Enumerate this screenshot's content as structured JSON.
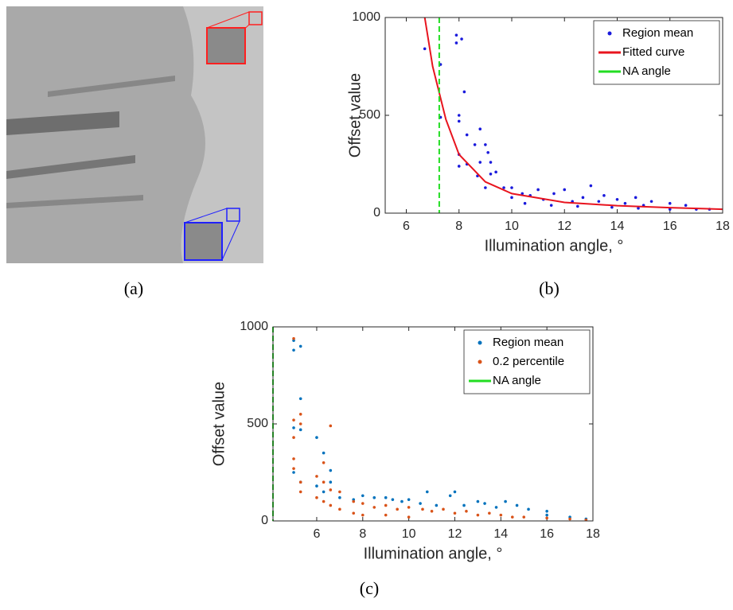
{
  "panel_a": {
    "caption": "(a)"
  },
  "chart_data": [
    {
      "type": "scatter",
      "caption": "(b)",
      "xlabel": "Illumination angle, °",
      "ylabel": "Offset value",
      "xlim": [
        5.2,
        18
      ],
      "ylim": [
        0,
        1000
      ],
      "xticks": [
        6,
        8,
        10,
        12,
        14,
        16,
        18
      ],
      "yticks": [
        0,
        500,
        1000
      ],
      "legend": "upper right",
      "series": [
        {
          "name": "Region mean",
          "color": "#1a1adc",
          "kind": "scatter",
          "x": [
            6.7,
            7.3,
            7.3,
            7.9,
            7.9,
            8.1,
            8.0,
            8.0,
            8.2,
            8.0,
            8.0,
            8.3,
            8.3,
            8.6,
            8.8,
            8.8,
            9.0,
            9.1,
            9.2,
            9.2,
            9.4,
            8.7,
            9.0,
            9.7,
            10.0,
            10.0,
            10.4,
            10.7,
            11.0,
            11.2,
            11.6,
            12.0,
            12.3,
            12.7,
            13.0,
            13.3,
            13.5,
            14.0,
            14.3,
            14.7,
            15.0,
            15.3,
            16.0,
            16.6,
            17.0,
            17.5,
            10.5,
            11.5,
            12.5,
            13.8,
            14.8,
            16.0
          ],
          "values": [
            840,
            760,
            490,
            910,
            870,
            890,
            500,
            470,
            620,
            300,
            240,
            400,
            250,
            350,
            430,
            260,
            350,
            310,
            260,
            200,
            210,
            190,
            130,
            130,
            130,
            80,
            100,
            90,
            120,
            70,
            100,
            120,
            60,
            80,
            140,
            60,
            90,
            70,
            50,
            80,
            40,
            60,
            50,
            40,
            20,
            20,
            50,
            40,
            35,
            30,
            25,
            20
          ]
        },
        {
          "name": "Fitted curve",
          "color": "#e8141e",
          "kind": "line",
          "x": [
            6.7,
            7,
            7.5,
            8,
            9,
            10,
            12,
            14,
            16,
            18
          ],
          "values": [
            1000,
            750,
            480,
            300,
            160,
            100,
            55,
            38,
            28,
            20
          ]
        },
        {
          "name": "NA angle",
          "color": "#22dd22",
          "kind": "vline",
          "x": [
            7.25
          ]
        }
      ]
    },
    {
      "type": "scatter",
      "caption": "(c)",
      "xlabel": "Illumination angle, °",
      "ylabel": "Offset value",
      "xlim": [
        4.1,
        18
      ],
      "ylim": [
        0,
        1000
      ],
      "xticks": [
        6,
        8,
        10,
        12,
        14,
        16,
        18
      ],
      "yticks": [
        0,
        500,
        1000
      ],
      "legend": "upper right",
      "series": [
        {
          "name": "Region mean",
          "color": "#0072bd",
          "kind": "scatter",
          "x": [
            5.0,
            5.0,
            5.3,
            5.3,
            5.3,
            5.0,
            5.0,
            5.3,
            6.0,
            6.3,
            6.6,
            6.0,
            6.3,
            6.6,
            7.0,
            7.6,
            8.0,
            8.5,
            9.0,
            9.3,
            9.7,
            10.0,
            10.5,
            10.8,
            11.2,
            11.8,
            12.0,
            12.4,
            13.0,
            13.3,
            13.8,
            14.2,
            14.7,
            15.2,
            16.0,
            16.0,
            17.0,
            17.7
          ],
          "values": [
            930,
            880,
            900,
            630,
            470,
            480,
            250,
            200,
            430,
            350,
            260,
            180,
            150,
            200,
            120,
            110,
            130,
            120,
            120,
            110,
            100,
            110,
            90,
            150,
            80,
            130,
            150,
            80,
            100,
            90,
            70,
            100,
            80,
            60,
            50,
            30,
            20,
            10
          ]
        },
        {
          "name": "0.2 percentile",
          "color": "#d95319",
          "kind": "scatter",
          "x": [
            5.0,
            5.0,
            5.0,
            5.0,
            5.0,
            5.3,
            5.3,
            5.3,
            5.3,
            6.0,
            6.0,
            6.3,
            6.3,
            6.3,
            6.6,
            6.6,
            6.6,
            7.0,
            7.0,
            7.6,
            7.6,
            8.0,
            8.0,
            8.5,
            9.0,
            9.0,
            9.5,
            10.0,
            10.0,
            10.6,
            11.0,
            11.5,
            12.0,
            12.5,
            13.0,
            13.5,
            14.0,
            14.5,
            15.0,
            16.0,
            17.0,
            17.7
          ],
          "values": [
            940,
            520,
            430,
            320,
            270,
            550,
            500,
            200,
            150,
            230,
            120,
            300,
            200,
            100,
            490,
            160,
            80,
            150,
            60,
            100,
            40,
            90,
            30,
            70,
            80,
            30,
            60,
            70,
            20,
            60,
            50,
            60,
            40,
            50,
            30,
            40,
            30,
            20,
            20,
            15,
            10,
            5
          ]
        },
        {
          "name": "NA angle",
          "color": "#22dd22",
          "kind": "vline",
          "x": [
            4.1
          ]
        }
      ]
    }
  ]
}
